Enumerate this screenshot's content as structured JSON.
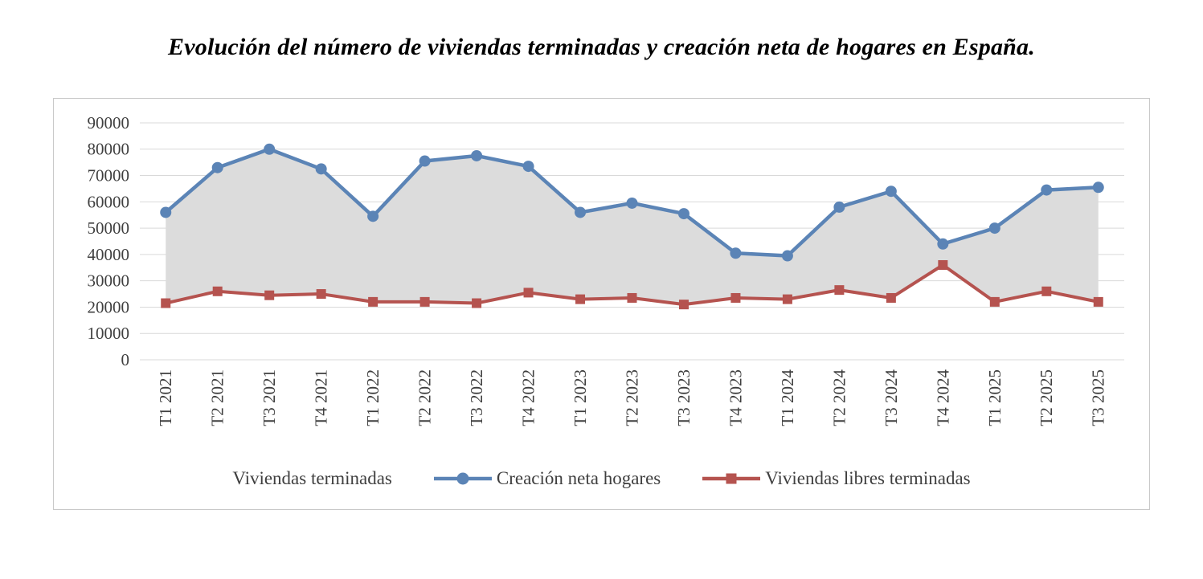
{
  "title": "Evolución del número de viviendas terminadas y creación neta de hogares en España.",
  "chart_data": {
    "type": "line",
    "title": "Evolución del número de viviendas terminadas y creación neta de hogares en España.",
    "categories": [
      "T1 2021",
      "T2 2021",
      "T3 2021",
      "T4 2021",
      "T1 2022",
      "T2 2022",
      "T3 2022",
      "T4 2022",
      "T1 2023",
      "T2 2023",
      "T3 2023",
      "T4 2023",
      "T1 2024",
      "T2 2024",
      "T3 2024",
      "T4 2024",
      "T1 2025",
      "T2 2025",
      "T3 2025"
    ],
    "series": [
      {
        "name": "Creación neta hogares",
        "marker": "circle",
        "color": "#5b84b6",
        "values": [
          56000,
          73000,
          80000,
          72500,
          54500,
          75500,
          77500,
          73500,
          56000,
          59500,
          55500,
          40500,
          39500,
          58000,
          64000,
          44000,
          50000,
          64500,
          65500
        ]
      },
      {
        "name": "Viviendas libres terminadas",
        "marker": "square",
        "color": "#b5534f",
        "values": [
          21500,
          26000,
          24500,
          25000,
          22000,
          22000,
          21500,
          25500,
          23000,
          23500,
          21000,
          23500,
          23000,
          26500,
          23500,
          36000,
          22000,
          26000,
          22000
        ]
      }
    ],
    "area": {
      "name": "Viviendas terminadas",
      "fill_color": "#dcdcdc",
      "between": [
        "Viviendas libres terminadas",
        "Creación neta hogares"
      ]
    },
    "ylim": [
      0,
      90000
    ],
    "ytick_step": 10000,
    "grid": true,
    "grid_color": "#d9d9d9",
    "axis_text_color": "#3f3f3f",
    "legend_position": "bottom",
    "legend_order": [
      "Viviendas terminadas",
      "Creación neta hogares",
      "Viviendas libres terminadas"
    ]
  }
}
